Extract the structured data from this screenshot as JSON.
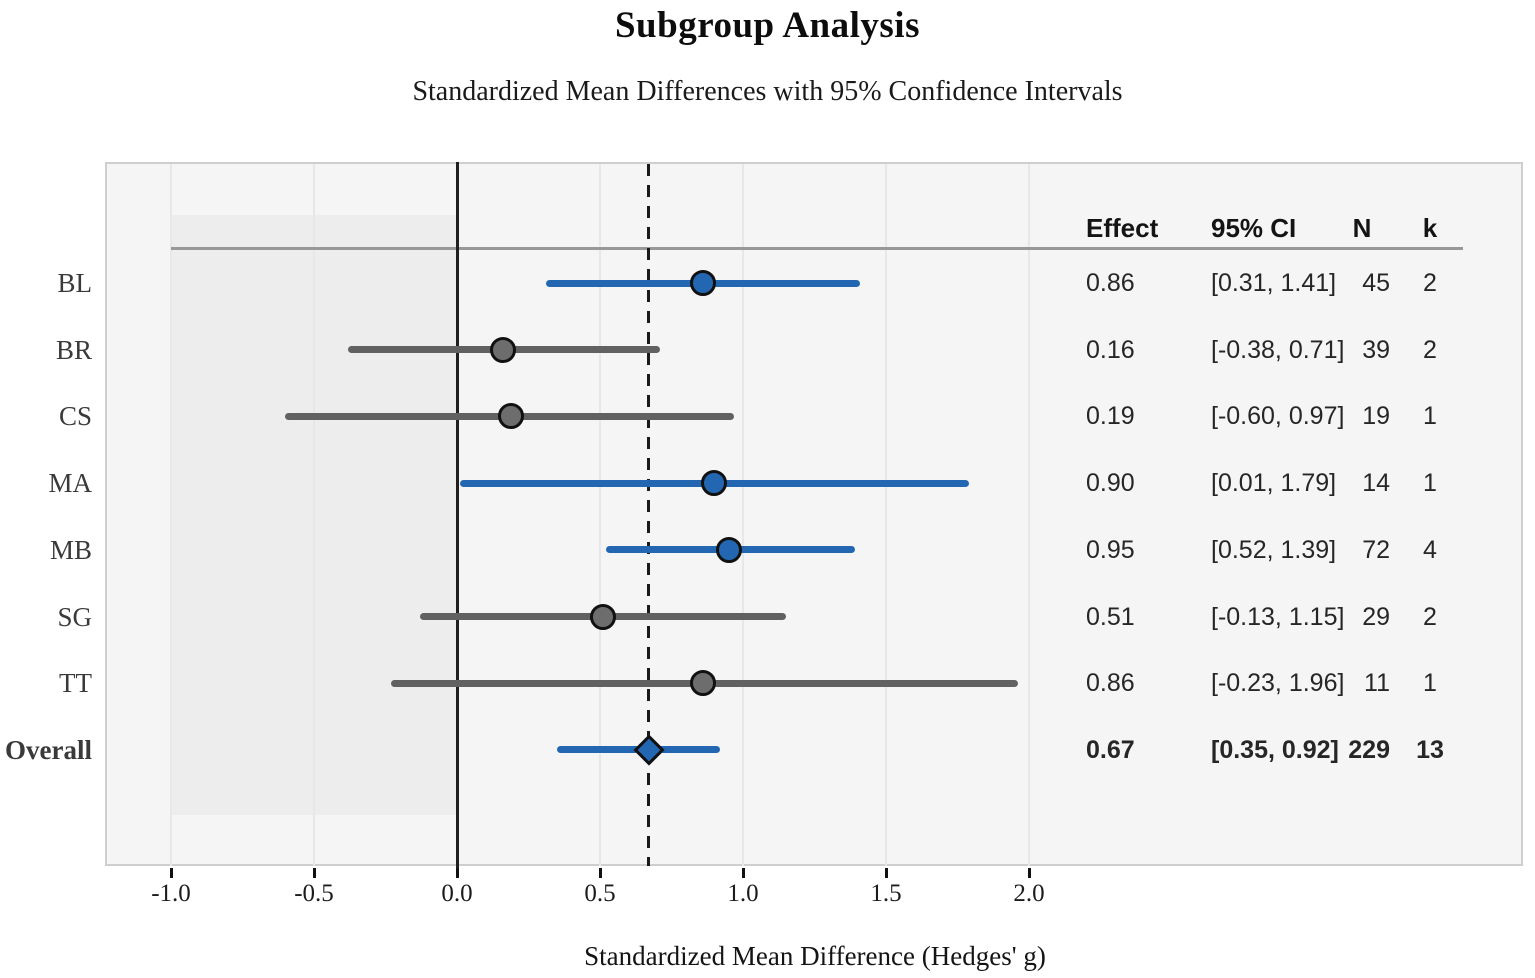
{
  "title": "Subgroup Analysis",
  "subtitle": "Standardized Mean Differences with 95% Confidence Intervals",
  "xlabel": "Standardized Mean Difference (Hedges' g)",
  "table_headers": {
    "effect": "Effect",
    "ci": "95% CI",
    "n": "N",
    "k": "k"
  },
  "chart_data": {
    "type": "forest",
    "title": "Subgroup Analysis",
    "subtitle": "Standardized Mean Differences with 95% Confidence Intervals",
    "xlabel": "Standardized Mean Difference (Hedges' g)",
    "x_ticks": [
      -1.0,
      -0.5,
      0.0,
      0.5,
      1.0,
      1.5,
      2.0
    ],
    "x_tick_labels": [
      "-1.0",
      "-0.5",
      "0.0",
      "0.5",
      "1.0",
      "1.5",
      "2.0"
    ],
    "xlim": [
      -1.23,
      2.45
    ],
    "grid": "vertical-light",
    "zero_line": 0.0,
    "overall_dashed_line": 0.67,
    "shaded_region_x": [
      -1.0,
      0.0
    ],
    "columns": [
      "Effect",
      "95% CI",
      "N",
      "k"
    ],
    "rows": [
      {
        "label": "BL",
        "effect": 0.86,
        "ci": [
          0.31,
          1.41
        ],
        "n": 45,
        "k": 2,
        "effect_text": "0.86",
        "ci_text": "[0.31, 1.41]",
        "n_text": "45",
        "k_text": "2",
        "significant": true,
        "marker": "circle",
        "bold": false
      },
      {
        "label": "BR",
        "effect": 0.16,
        "ci": [
          -0.38,
          0.71
        ],
        "n": 39,
        "k": 2,
        "effect_text": "0.16",
        "ci_text": "[-0.38, 0.71]",
        "n_text": "39",
        "k_text": "2",
        "significant": false,
        "marker": "circle",
        "bold": false
      },
      {
        "label": "CS",
        "effect": 0.19,
        "ci": [
          -0.6,
          0.97
        ],
        "n": 19,
        "k": 1,
        "effect_text": "0.19",
        "ci_text": "[-0.60, 0.97]",
        "n_text": "19",
        "k_text": "1",
        "significant": false,
        "marker": "circle",
        "bold": false
      },
      {
        "label": "MA",
        "effect": 0.9,
        "ci": [
          0.01,
          1.79
        ],
        "n": 14,
        "k": 1,
        "effect_text": "0.90",
        "ci_text": "[0.01, 1.79]",
        "n_text": "14",
        "k_text": "1",
        "significant": true,
        "marker": "circle",
        "bold": false
      },
      {
        "label": "MB",
        "effect": 0.95,
        "ci": [
          0.52,
          1.39
        ],
        "n": 72,
        "k": 4,
        "effect_text": "0.95",
        "ci_text": "[0.52, 1.39]",
        "n_text": "72",
        "k_text": "4",
        "significant": true,
        "marker": "circle",
        "bold": false
      },
      {
        "label": "SG",
        "effect": 0.51,
        "ci": [
          -0.13,
          1.15
        ],
        "n": 29,
        "k": 2,
        "effect_text": "0.51",
        "ci_text": "[-0.13, 1.15]",
        "n_text": "29",
        "k_text": "2",
        "significant": false,
        "marker": "circle",
        "bold": false
      },
      {
        "label": "TT",
        "effect": 0.86,
        "ci": [
          -0.23,
          1.96
        ],
        "n": 11,
        "k": 1,
        "effect_text": "0.86",
        "ci_text": "[-0.23, 1.96]",
        "n_text": "11",
        "k_text": "1",
        "significant": false,
        "marker": "circle",
        "bold": false
      },
      {
        "label": "Overall",
        "effect": 0.67,
        "ci": [
          0.35,
          0.92
        ],
        "n": 229,
        "k": 13,
        "effect_text": "0.67",
        "ci_text": "[0.35, 0.92]",
        "n_text": "229",
        "k_text": "13",
        "significant": true,
        "marker": "diamond",
        "bold": true
      }
    ],
    "colors": {
      "significant": "#2367b2",
      "nonsignificant_line": "#616161",
      "nonsignificant_marker": "#6d6d6d",
      "marker_outline": "#111111",
      "zero_line": "#1f1f1f",
      "dashed_line": "#1a1a1a",
      "panel_bg": "#f5f5f6",
      "band_bg": "#ededee",
      "gridline": "#e7e7e7",
      "panel_border": "#cfcfcf",
      "separator": "#989898",
      "tick": "#111111"
    }
  }
}
